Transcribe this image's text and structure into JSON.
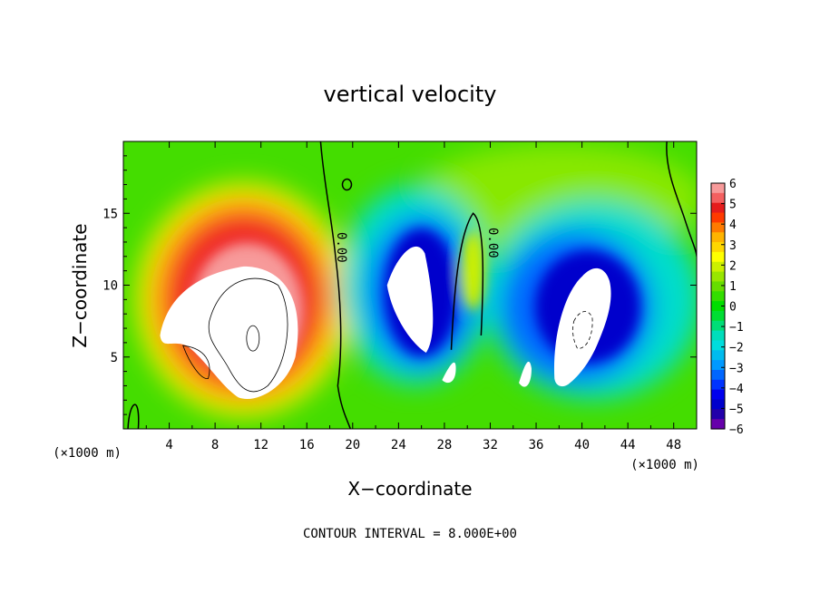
{
  "chart_data": {
    "type": "heatmap",
    "title": "vertical velocity",
    "xlabel": "X−coordinate",
    "ylabel": "Z−coordinate",
    "x_unit": "(×1000 m)",
    "z_unit": "(×1000 m)",
    "xlim": [
      0,
      50
    ],
    "ylim": [
      0,
      20
    ],
    "x_ticks": [
      "4",
      "8",
      "12",
      "16",
      "20",
      "24",
      "28",
      "32",
      "36",
      "40",
      "44",
      "48"
    ],
    "y_ticks": [
      "5",
      "10",
      "15"
    ],
    "colorbar": {
      "min": -6,
      "max": 6,
      "tick_labels": [
        "6",
        "5",
        "4",
        "3",
        "2",
        "1",
        "0",
        "−1",
        "−2",
        "−3",
        "−4",
        "−5",
        "−6"
      ],
      "colors": [
        "#f79a9a",
        "#f46060",
        "#e61c1c",
        "#ff3a00",
        "#ff7a00",
        "#ffb400",
        "#ffd700",
        "#ffff00",
        "#ccf000",
        "#99e600",
        "#66dd00",
        "#33dd00",
        "#00dd00",
        "#00dd33",
        "#00dd77",
        "#00ddbb",
        "#00dddd",
        "#00bbee",
        "#0099ff",
        "#0066ff",
        "#0033ff",
        "#0000ee",
        "#0000cc",
        "#2200aa",
        "#6600aa"
      ]
    },
    "contour_label": "0.00",
    "features": [
      {
        "name": "updraft core",
        "x_center": 10.5,
        "z_center": 8.5,
        "sign": "positive",
        "max": 6
      },
      {
        "name": "downdraft west",
        "x_center": 25.5,
        "z_center": 10,
        "sign": "negative",
        "min": -6
      },
      {
        "name": "downdraft east",
        "x_center": 41,
        "z_center": 8,
        "sign": "negative",
        "min": -6
      }
    ],
    "grid": false,
    "legend": "colorbar-right"
  },
  "footer": "CONTOUR INTERVAL = 8.000E+00"
}
